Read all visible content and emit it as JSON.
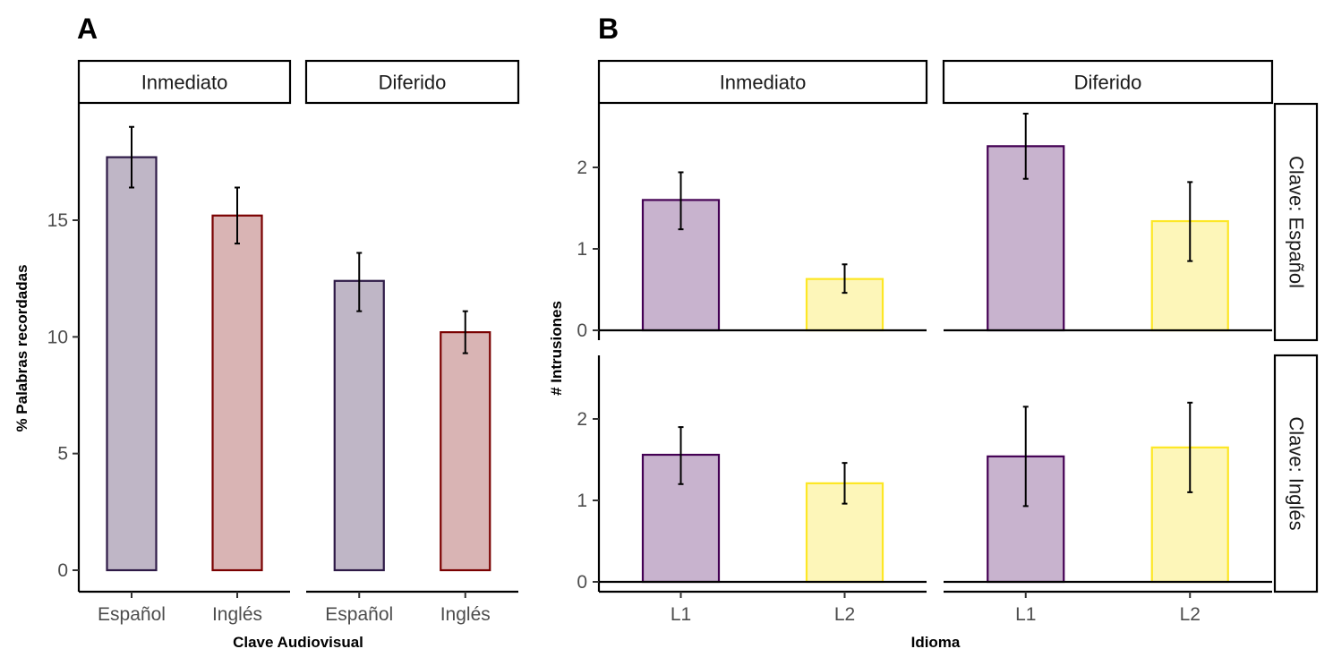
{
  "chart_data": [
    {
      "panel_tag": "A",
      "type": "bar",
      "xlabel": "Clave Audiovisual",
      "ylabel": "% Palabras recordadas",
      "ylim": [
        0,
        18.5
      ],
      "yticks": [
        0,
        5,
        10,
        15
      ],
      "facets": [
        {
          "label": "Inmediato",
          "categories": [
            "Español",
            "Inglés"
          ],
          "values": [
            17.7,
            15.2
          ],
          "error_low": [
            16.4,
            14.0
          ],
          "error_high": [
            19.0,
            16.4
          ]
        },
        {
          "label": "Diferido",
          "categories": [
            "Español",
            "Inglés"
          ],
          "values": [
            12.4,
            10.2
          ],
          "error_low": [
            11.1,
            9.3
          ],
          "error_high": [
            13.6,
            11.1
          ]
        }
      ],
      "colors": {
        "Español": {
          "fill": "#bfb6c6",
          "stroke": "#2e1a47"
        },
        "Inglés": {
          "fill": "#d9b4b4",
          "stroke": "#7a0000"
        }
      }
    },
    {
      "panel_tag": "B",
      "type": "bar",
      "xlabel": "Idioma",
      "ylabel": "# Intrusiones",
      "ylim": [
        0,
        2.85
      ],
      "yticks": [
        0,
        1,
        2
      ],
      "col_facets": [
        "Inmediato",
        "Diferido"
      ],
      "row_facets": [
        "Clave: Español",
        "Clave: Inglés"
      ],
      "categories": [
        "L1",
        "L2"
      ],
      "cells": [
        {
          "row": "Clave: Español",
          "col": "Inmediato",
          "values": [
            1.6,
            0.63
          ],
          "error_low": [
            1.24,
            0.46
          ],
          "error_high": [
            1.94,
            0.81
          ]
        },
        {
          "row": "Clave: Español",
          "col": "Diferido",
          "values": [
            2.26,
            1.34
          ],
          "error_low": [
            1.86,
            0.85
          ],
          "error_high": [
            2.66,
            1.82
          ]
        },
        {
          "row": "Clave: Inglés",
          "col": "Inmediato",
          "values": [
            1.56,
            1.21
          ],
          "error_low": [
            1.2,
            0.96
          ],
          "error_high": [
            1.9,
            1.46
          ]
        },
        {
          "row": "Clave: Inglés",
          "col": "Diferido",
          "values": [
            1.54,
            1.65
          ],
          "error_low": [
            0.93,
            1.1
          ],
          "error_high": [
            2.15,
            2.2
          ]
        }
      ],
      "colors": {
        "L1": {
          "fill": "#c8b3ce",
          "stroke": "#440154"
        },
        "L2": {
          "fill": "#fdf6b9",
          "stroke": "#fde725"
        }
      }
    }
  ]
}
